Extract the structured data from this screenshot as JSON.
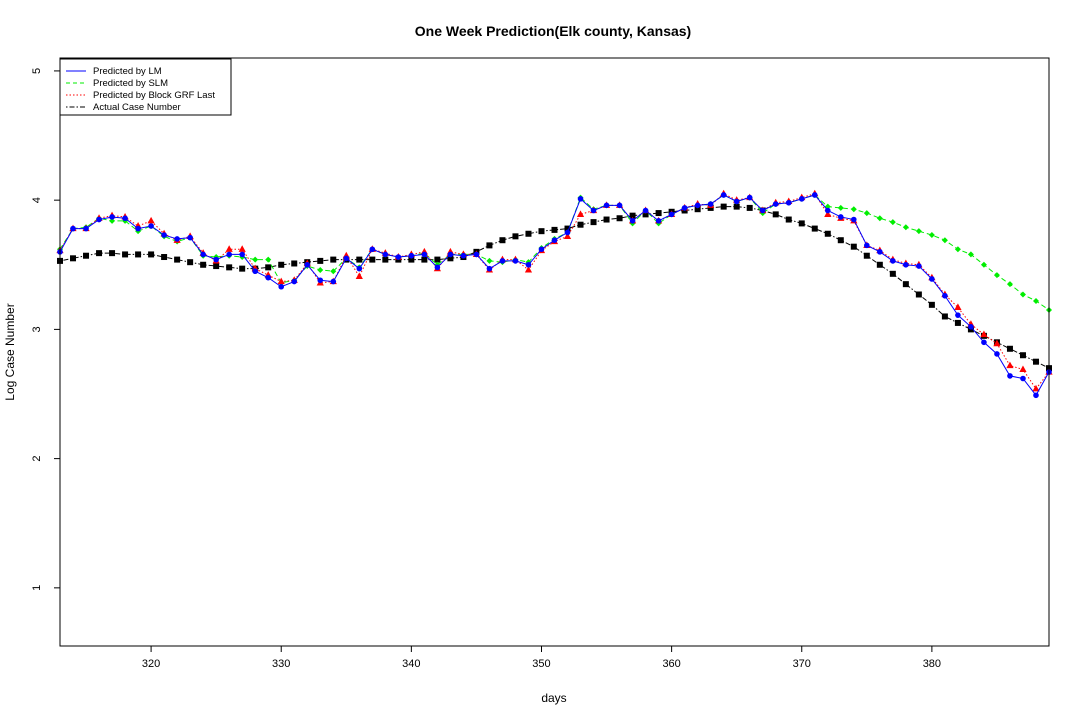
{
  "chart_data": {
    "type": "line",
    "title": "One Week Prediction(Elk county, Kansas)",
    "xlabel": "days",
    "ylabel": "Log Case Number",
    "xlim": [
      313,
      389
    ],
    "ylim": [
      0.55,
      5.1
    ],
    "x_ticks": [
      320,
      330,
      340,
      350,
      360,
      370,
      380
    ],
    "y_ticks": [
      1,
      2,
      3,
      4,
      5
    ],
    "x_tick_labels": [
      "320",
      "330",
      "340",
      "350",
      "360",
      "370",
      "380"
    ],
    "y_tick_labels": [
      "1",
      "2",
      "3",
      "4",
      "5"
    ],
    "legend_position": "top-left",
    "x": [
      313,
      314,
      315,
      316,
      317,
      318,
      319,
      320,
      321,
      322,
      323,
      324,
      325,
      326,
      327,
      328,
      329,
      330,
      331,
      332,
      333,
      334,
      335,
      336,
      337,
      338,
      339,
      340,
      341,
      342,
      343,
      344,
      345,
      346,
      347,
      348,
      349,
      350,
      351,
      352,
      353,
      354,
      355,
      356,
      357,
      358,
      359,
      360,
      361,
      362,
      363,
      364,
      365,
      366,
      367,
      368,
      369,
      370,
      371,
      372,
      373,
      374,
      375,
      376,
      377,
      378,
      379,
      380,
      381,
      382,
      383,
      384,
      385,
      386,
      387,
      388,
      389
    ],
    "series": [
      {
        "name": "Predicted by LM",
        "color": "#0000ff",
        "line_style": "solid",
        "marker": "circle",
        "values": [
          3.6,
          3.78,
          3.78,
          3.85,
          3.87,
          3.86,
          3.78,
          3.8,
          3.73,
          3.7,
          3.71,
          3.58,
          3.54,
          3.58,
          3.58,
          3.45,
          3.4,
          3.33,
          3.37,
          3.5,
          3.38,
          3.37,
          3.55,
          3.47,
          3.62,
          3.58,
          3.56,
          3.57,
          3.58,
          3.48,
          3.58,
          3.57,
          3.58,
          3.47,
          3.53,
          3.53,
          3.5,
          3.62,
          3.69,
          3.75,
          4.01,
          3.92,
          3.96,
          3.96,
          3.84,
          3.92,
          3.84,
          3.89,
          3.94,
          3.96,
          3.97,
          4.04,
          3.99,
          4.02,
          3.92,
          3.97,
          3.98,
          4.01,
          4.04,
          3.92,
          3.87,
          3.85,
          3.65,
          3.6,
          3.53,
          3.5,
          3.49,
          3.39,
          3.26,
          3.11,
          3.02,
          2.9,
          2.81,
          2.64,
          2.62,
          2.49,
          2.67
        ]
      },
      {
        "name": "Predicted by SLM",
        "color": "#00ee00",
        "line_style": "dashed",
        "marker": "diamond",
        "values": [
          3.62,
          3.78,
          3.79,
          3.86,
          3.84,
          3.84,
          3.76,
          3.8,
          3.72,
          3.68,
          3.71,
          3.57,
          3.56,
          3.57,
          3.56,
          3.54,
          3.54,
          3.36,
          3.38,
          3.49,
          3.46,
          3.45,
          3.55,
          3.48,
          3.62,
          3.58,
          3.56,
          3.57,
          3.59,
          3.5,
          3.58,
          3.58,
          3.58,
          3.53,
          3.52,
          3.54,
          3.52,
          3.63,
          3.7,
          3.75,
          4.02,
          3.93,
          3.96,
          3.96,
          3.82,
          3.92,
          3.82,
          3.89,
          3.94,
          3.96,
          3.97,
          4.04,
          3.99,
          4.02,
          3.9,
          3.97,
          3.98,
          4.01,
          4.04,
          3.95,
          3.94,
          3.93,
          3.9,
          3.86,
          3.83,
          3.79,
          3.76,
          3.73,
          3.69,
          3.62,
          3.58,
          3.5,
          3.42,
          3.35,
          3.27,
          3.22,
          3.15
        ]
      },
      {
        "name": "Predicted by Block GRF Last",
        "color": "#ff0000",
        "line_style": "dotted",
        "marker": "triangle",
        "values": [
          3.61,
          3.78,
          3.78,
          3.86,
          3.88,
          3.87,
          3.8,
          3.84,
          3.74,
          3.69,
          3.72,
          3.59,
          3.53,
          3.62,
          3.62,
          3.47,
          3.42,
          3.37,
          3.38,
          3.51,
          3.36,
          3.37,
          3.57,
          3.41,
          3.62,
          3.59,
          3.56,
          3.58,
          3.6,
          3.47,
          3.6,
          3.58,
          3.58,
          3.46,
          3.54,
          3.54,
          3.46,
          3.61,
          3.68,
          3.72,
          3.89,
          3.92,
          3.96,
          3.96,
          3.84,
          3.92,
          3.84,
          3.89,
          3.94,
          3.97,
          3.96,
          4.05,
          4.0,
          4.02,
          3.92,
          3.98,
          3.99,
          4.02,
          4.05,
          3.89,
          3.86,
          3.84,
          3.65,
          3.61,
          3.54,
          3.51,
          3.5,
          3.4,
          3.27,
          3.17,
          3.04,
          2.96,
          2.89,
          2.72,
          2.69,
          2.54,
          2.67
        ]
      },
      {
        "name": "Actual Case Number",
        "color": "#000000",
        "line_style": "dotdash",
        "marker": "square",
        "values": [
          3.53,
          3.55,
          3.57,
          3.59,
          3.59,
          3.58,
          3.58,
          3.58,
          3.56,
          3.54,
          3.52,
          3.5,
          3.49,
          3.48,
          3.47,
          3.47,
          3.48,
          3.5,
          3.51,
          3.52,
          3.53,
          3.54,
          3.54,
          3.54,
          3.54,
          3.54,
          3.54,
          3.54,
          3.54,
          3.54,
          3.55,
          3.56,
          3.6,
          3.65,
          3.69,
          3.72,
          3.74,
          3.76,
          3.77,
          3.78,
          3.81,
          3.83,
          3.85,
          3.86,
          3.88,
          3.89,
          3.9,
          3.91,
          3.92,
          3.93,
          3.94,
          3.95,
          3.95,
          3.94,
          3.92,
          3.89,
          3.85,
          3.82,
          3.78,
          3.74,
          3.69,
          3.64,
          3.57,
          3.5,
          3.43,
          3.35,
          3.27,
          3.19,
          3.1,
          3.05,
          3.0,
          2.95,
          2.9,
          2.85,
          2.8,
          2.75,
          2.7
        ]
      }
    ]
  }
}
